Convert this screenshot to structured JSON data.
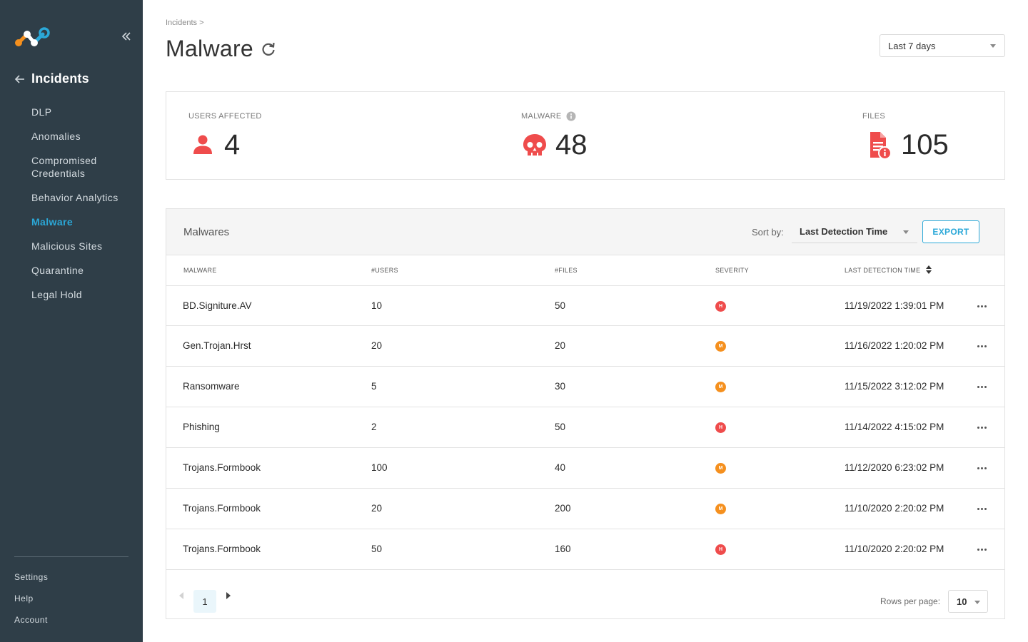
{
  "sidebar": {
    "back_label": "Incidents",
    "items": [
      {
        "label": "DLP",
        "active": false
      },
      {
        "label": "Anomalies",
        "active": false
      },
      {
        "label": "Compromised Credentials",
        "active": false
      },
      {
        "label": "Behavior Analytics",
        "active": false
      },
      {
        "label": "Malware",
        "active": true
      },
      {
        "label": "Malicious Sites",
        "active": false
      },
      {
        "label": "Quarantine",
        "active": false
      },
      {
        "label": "Legal Hold",
        "active": false
      }
    ],
    "bottom": [
      "Settings",
      "Help",
      "Account"
    ]
  },
  "header": {
    "breadcrumb": "Incidents >",
    "title": "Malware",
    "range": "Last 7 days"
  },
  "stats": {
    "users": {
      "label": "USERS AFFECTED",
      "value": "4"
    },
    "malware": {
      "label": "MALWARE",
      "value": "48"
    },
    "files": {
      "label": "FILES",
      "value": "105"
    }
  },
  "table": {
    "title": "Malwares",
    "sort_label": "Sort by:",
    "sort_value": "Last Detection Time",
    "export_label": "EXPORT",
    "columns": [
      "MALWARE",
      "#USERS",
      "#FILES",
      "SEVERITY",
      "LAST DETECTION TIME"
    ],
    "rows": [
      {
        "name": "BD.Signiture.AV",
        "users": "10",
        "files": "50",
        "severity": "H",
        "time": "11/19/2022 1:39:01 PM"
      },
      {
        "name": "Gen.Trojan.Hrst",
        "users": "20",
        "files": "20",
        "severity": "M",
        "time": "11/16/2022 1:20:02 PM"
      },
      {
        "name": "Ransomware",
        "users": "5",
        "files": "30",
        "severity": "M",
        "time": "11/15/2022 3:12:02 PM"
      },
      {
        "name": "Phishing",
        "users": "2",
        "files": "50",
        "severity": "H",
        "time": "11/14/2022 4:15:02 PM"
      },
      {
        "name": "Trojans.Formbook",
        "users": "100",
        "files": "40",
        "severity": "M",
        "time": "11/12/2020 6:23:02 PM"
      },
      {
        "name": "Trojans.Formbook",
        "users": "20",
        "files": "200",
        "severity": "M",
        "time": "11/10/2020 2:20:02 PM"
      },
      {
        "name": "Trojans.Formbook",
        "users": "50",
        "files": "160",
        "severity": "H",
        "time": "11/10/2020 2:20:02 PM"
      }
    ],
    "severity_colors": {
      "H": "#ef4c4c",
      "M": "#f5901e"
    }
  },
  "pagination": {
    "page": "1",
    "rows_label": "Rows per page:",
    "rows_value": "10"
  },
  "colors": {
    "sidebar_bg": "#2f3e48",
    "accent": "#2ba8d8",
    "alert_red": "#ef4c4c"
  }
}
